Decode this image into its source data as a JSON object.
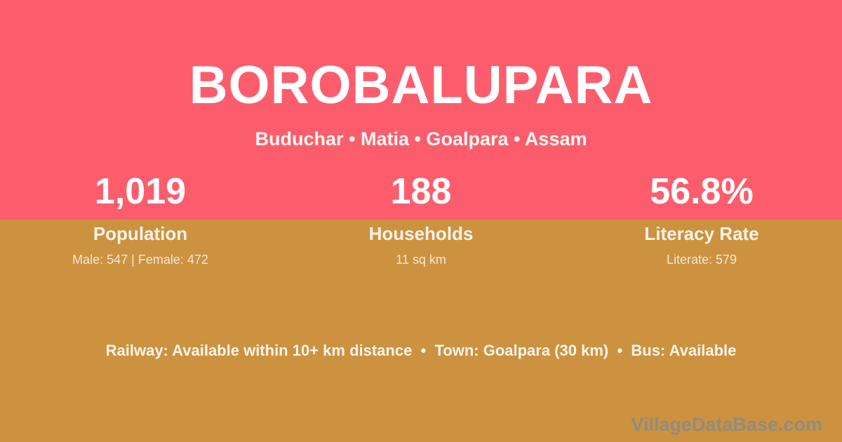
{
  "colors": {
    "top_background": "#fc5d6d",
    "bottom_background": "#cc9240",
    "primary_text": "#ffffff",
    "muted_text": "rgba(255,255,255,0.78)",
    "watermark_text": "#8b8b89"
  },
  "header": {
    "title": "BOROBALUPARA",
    "location_line": "Buduchar • Matia • Goalpara • Assam"
  },
  "stats": [
    {
      "value": "1,019",
      "label": "Population",
      "detail": "Male: 547 | Female: 472"
    },
    {
      "value": "188",
      "label": "Households",
      "detail": "11 sq km"
    },
    {
      "value": "56.8%",
      "label": "Literacy Rate",
      "detail": "Literate: 579"
    }
  ],
  "footer": {
    "info_line": "Railway: Available within 10+ km distance  •  Town: Goalpara (30 km)  •  Bus: Available",
    "watermark": "VillageDataBase.com"
  }
}
